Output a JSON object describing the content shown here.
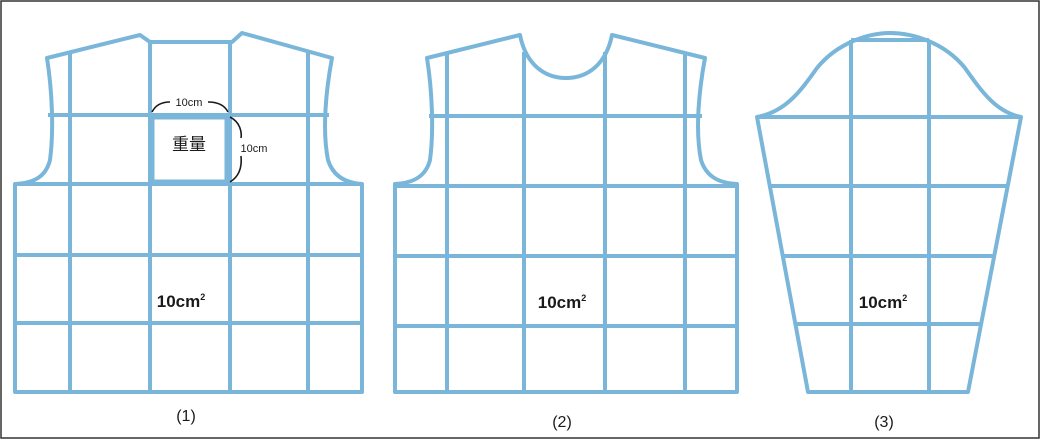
{
  "figures": [
    {
      "caption": "(1)",
      "area_label": "10cm",
      "area_sup": "2"
    },
    {
      "caption": "(2)",
      "area_label": "10cm",
      "area_sup": "2"
    },
    {
      "caption": "(3)",
      "area_label": "10cm",
      "area_sup": "2"
    }
  ],
  "highlight_cell": {
    "text": "重量",
    "width_label": "10cm",
    "height_label": "10cm"
  },
  "colors": {
    "grid": "#7ab6d9",
    "text": "#1a1a1a",
    "border": "#333333"
  }
}
